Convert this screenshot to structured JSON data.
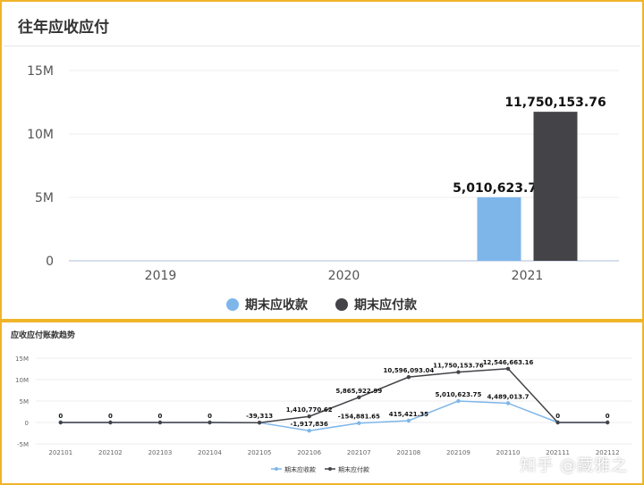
{
  "top": {
    "title": "往年应收应付"
  },
  "bottom": {
    "title": "应收应付账款趋势"
  },
  "watermark": "知乎 @藏雅之",
  "colors": {
    "receivable": "#7eb6ea",
    "payable": "#434348",
    "border": "#f0b429"
  },
  "chart_data": [
    {
      "type": "bar",
      "title": "往年应收应付",
      "categories": [
        "2019",
        "2020",
        "2021"
      ],
      "series": [
        {
          "name": "期末应收款",
          "values": [
            0,
            0,
            5010623.75
          ],
          "labels": [
            "",
            "",
            "5,010,623.75"
          ]
        },
        {
          "name": "期末应付款",
          "values": [
            0,
            0,
            11750153.76
          ],
          "labels": [
            "",
            "",
            "11,750,153.76"
          ]
        }
      ],
      "ylim": [
        0,
        15000000
      ],
      "yticks": [
        0,
        5000000,
        10000000,
        15000000
      ],
      "ytick_labels": [
        "0",
        "5M",
        "10M",
        "15M"
      ],
      "legend": "bottom",
      "grid": true
    },
    {
      "type": "line",
      "title": "应收应付账款趋势",
      "x": [
        "202101",
        "202102",
        "202103",
        "202104",
        "202105",
        "202106",
        "202107",
        "202108",
        "202109",
        "202110",
        "202111",
        "202112"
      ],
      "series": [
        {
          "name": "期末应收款",
          "values": [
            0,
            0,
            0,
            0,
            -39313,
            -1917836,
            -154881.65,
            415421.35,
            5010623.75,
            4489013.7,
            0,
            0
          ],
          "labels": [
            "",
            "",
            "",
            "",
            "",
            "-1,917,836",
            "-154,881.65",
            "415,421.35",
            "5,010,623.75",
            "4,489,013.7",
            "",
            ""
          ]
        },
        {
          "name": "期末应付款",
          "values": [
            0,
            0,
            0,
            0,
            -39313,
            1410770.62,
            5865922.99,
            10596093.04,
            11750153.76,
            12546663.16,
            0,
            0
          ],
          "labels": [
            "0",
            "0",
            "0",
            "0",
            "-39,313",
            "1,410,770.62",
            "5,865,922.99",
            "10,596,093.04",
            "11,750,153.76",
            "12,546,663.16",
            "0",
            "0"
          ]
        }
      ],
      "ylim": [
        -5000000,
        15000000
      ],
      "yticks": [
        -5000000,
        0,
        5000000,
        10000000,
        15000000
      ],
      "ytick_labels": [
        "-5M",
        "0",
        "5M",
        "10M",
        "15M"
      ],
      "legend": "bottom",
      "grid": true
    }
  ]
}
